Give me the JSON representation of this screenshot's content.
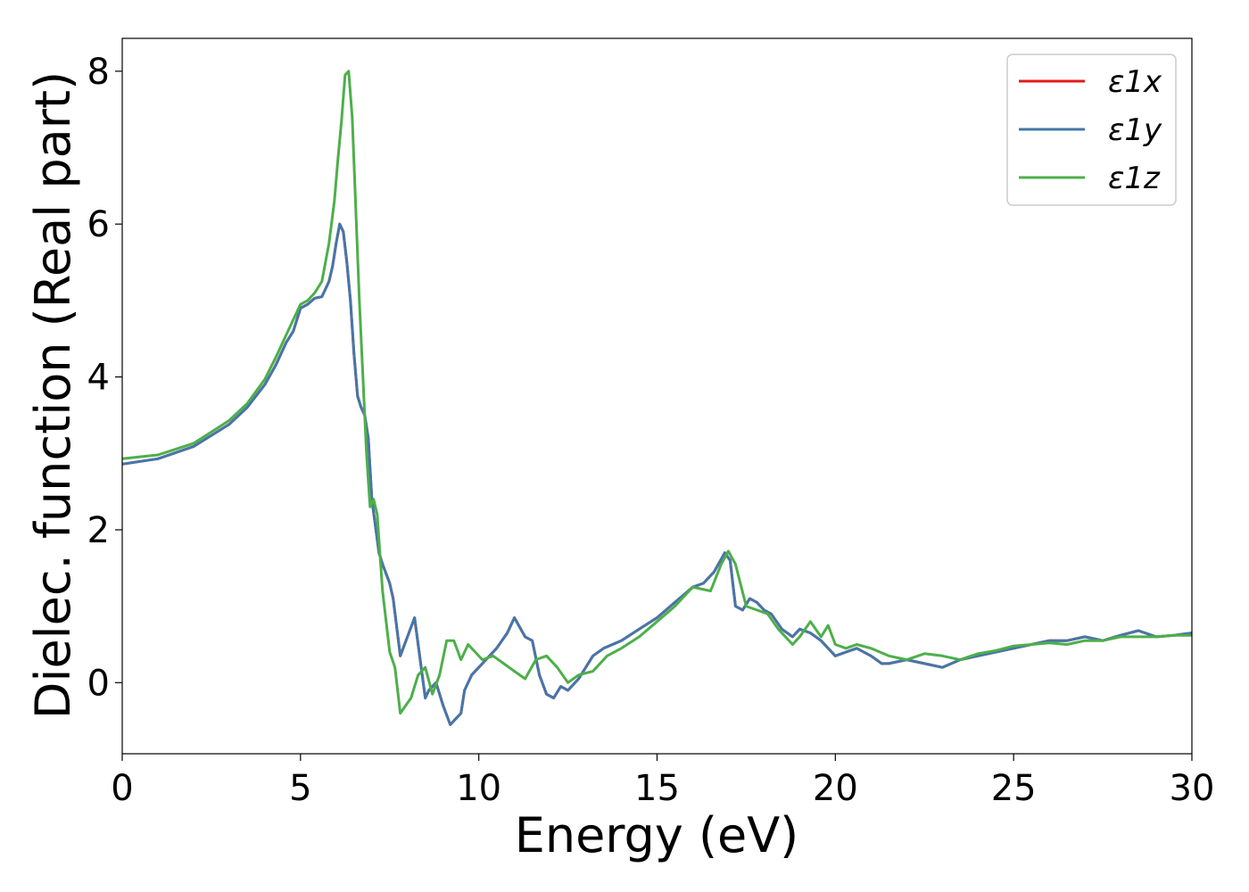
{
  "chart_data": {
    "type": "line",
    "title": "",
    "xlabel": "Energy (eV)",
    "ylabel": "Dielec. function (Real part)",
    "xlim": [
      0,
      30
    ],
    "ylim": [
      -0.93,
      8.43
    ],
    "xticks": [
      0,
      5,
      10,
      15,
      20,
      25,
      30
    ],
    "yticks": [
      0,
      2,
      4,
      6,
      8
    ],
    "grid": false,
    "legend_position": "top-right",
    "series": [
      {
        "name": "ε1x",
        "color": "#e41a1c",
        "x": [
          0,
          1,
          2,
          3,
          3.5,
          4,
          4.3,
          4.6,
          4.8,
          5.0,
          5.2,
          5.4,
          5.6,
          5.8,
          5.9,
          6.0,
          6.1,
          6.2,
          6.3,
          6.4,
          6.5,
          6.6,
          6.7,
          6.8,
          6.9,
          7.0,
          7.2,
          7.3,
          7.5,
          7.6,
          7.8,
          8.0,
          8.2,
          8.3,
          8.5,
          8.6,
          8.8,
          9.0,
          9.2,
          9.5,
          9.6,
          9.8,
          10.0,
          10.2,
          10.5,
          10.8,
          11.0,
          11.3,
          11.5,
          11.7,
          11.9,
          12.1,
          12.3,
          12.5,
          12.8,
          13.0,
          13.2,
          13.5,
          14.0,
          14.5,
          15.0,
          15.5,
          16.0,
          16.3,
          16.6,
          16.9,
          17.05,
          17.2,
          17.4,
          17.6,
          17.8,
          18.0,
          18.2,
          18.5,
          18.8,
          19.0,
          19.3,
          19.6,
          19.8,
          20.0,
          20.3,
          20.6,
          21.0,
          21.3,
          21.5,
          22.0,
          22.5,
          23.0,
          23.5,
          24.0,
          24.5,
          25.0,
          25.5,
          26.0,
          26.5,
          27.0,
          27.5,
          28.0,
          28.5,
          29.0,
          29.5,
          30.0
        ],
        "y": [
          2.86,
          2.93,
          3.09,
          3.38,
          3.6,
          3.9,
          4.15,
          4.45,
          4.6,
          4.9,
          4.95,
          5.03,
          5.05,
          5.25,
          5.45,
          5.75,
          6.0,
          5.9,
          5.5,
          5.0,
          4.3,
          3.75,
          3.6,
          3.5,
          3.2,
          2.4,
          1.7,
          1.55,
          1.3,
          1.1,
          0.35,
          0.6,
          0.85,
          0.5,
          -0.2,
          -0.1,
          0.0,
          -0.3,
          -0.55,
          -0.4,
          -0.1,
          0.1,
          0.2,
          0.3,
          0.45,
          0.65,
          0.85,
          0.6,
          0.55,
          0.1,
          -0.15,
          -0.2,
          -0.05,
          -0.1,
          0.05,
          0.2,
          0.35,
          0.45,
          0.55,
          0.7,
          0.85,
          1.05,
          1.25,
          1.3,
          1.45,
          1.7,
          1.6,
          1.0,
          0.95,
          1.1,
          1.05,
          0.95,
          0.9,
          0.7,
          0.6,
          0.7,
          0.65,
          0.55,
          0.45,
          0.35,
          0.4,
          0.45,
          0.35,
          0.25,
          0.25,
          0.3,
          0.25,
          0.2,
          0.3,
          0.35,
          0.4,
          0.45,
          0.5,
          0.55,
          0.55,
          0.6,
          0.55,
          0.62,
          0.68,
          0.6,
          0.62,
          0.65
        ]
      },
      {
        "name": "ε1y",
        "color": "#4477aa",
        "x": [
          0,
          1,
          2,
          3,
          3.5,
          4,
          4.3,
          4.6,
          4.8,
          5.0,
          5.2,
          5.4,
          5.6,
          5.8,
          5.9,
          6.0,
          6.1,
          6.2,
          6.3,
          6.4,
          6.5,
          6.6,
          6.7,
          6.8,
          6.9,
          7.0,
          7.2,
          7.3,
          7.5,
          7.6,
          7.8,
          8.0,
          8.2,
          8.3,
          8.5,
          8.6,
          8.8,
          9.0,
          9.2,
          9.5,
          9.6,
          9.8,
          10.0,
          10.2,
          10.5,
          10.8,
          11.0,
          11.3,
          11.5,
          11.7,
          11.9,
          12.1,
          12.3,
          12.5,
          12.8,
          13.0,
          13.2,
          13.5,
          14.0,
          14.5,
          15.0,
          15.5,
          16.0,
          16.3,
          16.6,
          16.9,
          17.05,
          17.2,
          17.4,
          17.6,
          17.8,
          18.0,
          18.2,
          18.5,
          18.8,
          19.0,
          19.3,
          19.6,
          19.8,
          20.0,
          20.3,
          20.6,
          21.0,
          21.3,
          21.5,
          22.0,
          22.5,
          23.0,
          23.5,
          24.0,
          24.5,
          25.0,
          25.5,
          26.0,
          26.5,
          27.0,
          27.5,
          28.0,
          28.5,
          29.0,
          29.5,
          30.0
        ],
        "y": [
          2.86,
          2.93,
          3.09,
          3.38,
          3.6,
          3.9,
          4.15,
          4.45,
          4.6,
          4.9,
          4.95,
          5.03,
          5.05,
          5.25,
          5.45,
          5.75,
          6.0,
          5.9,
          5.5,
          5.0,
          4.3,
          3.75,
          3.6,
          3.5,
          3.2,
          2.4,
          1.7,
          1.55,
          1.3,
          1.1,
          0.35,
          0.6,
          0.85,
          0.5,
          -0.2,
          -0.1,
          0.0,
          -0.3,
          -0.55,
          -0.4,
          -0.1,
          0.1,
          0.2,
          0.3,
          0.45,
          0.65,
          0.85,
          0.6,
          0.55,
          0.1,
          -0.15,
          -0.2,
          -0.05,
          -0.1,
          0.05,
          0.2,
          0.35,
          0.45,
          0.55,
          0.7,
          0.85,
          1.05,
          1.25,
          1.3,
          1.45,
          1.7,
          1.6,
          1.0,
          0.95,
          1.1,
          1.05,
          0.95,
          0.9,
          0.7,
          0.6,
          0.7,
          0.65,
          0.55,
          0.45,
          0.35,
          0.4,
          0.45,
          0.35,
          0.25,
          0.25,
          0.3,
          0.25,
          0.2,
          0.3,
          0.35,
          0.4,
          0.45,
          0.5,
          0.55,
          0.55,
          0.6,
          0.55,
          0.62,
          0.68,
          0.6,
          0.62,
          0.65
        ]
      },
      {
        "name": "ε1z",
        "color": "#4daf4a",
        "x": [
          0,
          1,
          2,
          3,
          3.5,
          4,
          4.3,
          4.6,
          4.8,
          5.0,
          5.2,
          5.4,
          5.6,
          5.8,
          5.95,
          6.05,
          6.15,
          6.25,
          6.35,
          6.45,
          6.55,
          6.65,
          6.75,
          6.85,
          6.95,
          7.05,
          7.15,
          7.3,
          7.5,
          7.65,
          7.8,
          7.95,
          8.1,
          8.3,
          8.5,
          8.7,
          8.9,
          9.1,
          9.3,
          9.5,
          9.7,
          9.9,
          10.1,
          10.4,
          10.7,
          11.0,
          11.3,
          11.6,
          11.9,
          12.2,
          12.5,
          12.8,
          13.2,
          13.6,
          14.0,
          14.5,
          15.0,
          15.5,
          16.0,
          16.5,
          16.8,
          17.0,
          17.2,
          17.5,
          17.8,
          18.1,
          18.4,
          18.8,
          19.0,
          19.3,
          19.6,
          19.8,
          20.0,
          20.3,
          20.6,
          21.0,
          21.5,
          22.0,
          22.5,
          23.0,
          23.5,
          24.0,
          24.5,
          25.0,
          25.5,
          26.0,
          26.5,
          27.0,
          27.5,
          28.0,
          28.5,
          29.0,
          29.5,
          30.0
        ],
        "y": [
          2.93,
          2.98,
          3.13,
          3.43,
          3.65,
          3.97,
          4.25,
          4.55,
          4.75,
          4.95,
          5.0,
          5.1,
          5.25,
          5.75,
          6.3,
          6.85,
          7.35,
          7.95,
          8.0,
          7.4,
          6.2,
          5.0,
          4.0,
          3.0,
          2.3,
          2.4,
          2.2,
          1.2,
          0.4,
          0.2,
          -0.4,
          -0.3,
          -0.2,
          0.1,
          0.2,
          -0.15,
          0.1,
          0.55,
          0.55,
          0.3,
          0.5,
          0.4,
          0.3,
          0.35,
          0.25,
          0.15,
          0.05,
          0.3,
          0.35,
          0.2,
          0.0,
          0.1,
          0.15,
          0.35,
          0.45,
          0.6,
          0.8,
          1.0,
          1.25,
          1.2,
          1.55,
          1.72,
          1.55,
          1.0,
          0.95,
          0.9,
          0.7,
          0.5,
          0.6,
          0.8,
          0.6,
          0.75,
          0.5,
          0.45,
          0.5,
          0.45,
          0.35,
          0.3,
          0.38,
          0.35,
          0.3,
          0.38,
          0.42,
          0.48,
          0.5,
          0.52,
          0.5,
          0.55,
          0.55,
          0.6,
          0.6,
          0.6,
          0.62,
          0.62
        ]
      }
    ]
  }
}
